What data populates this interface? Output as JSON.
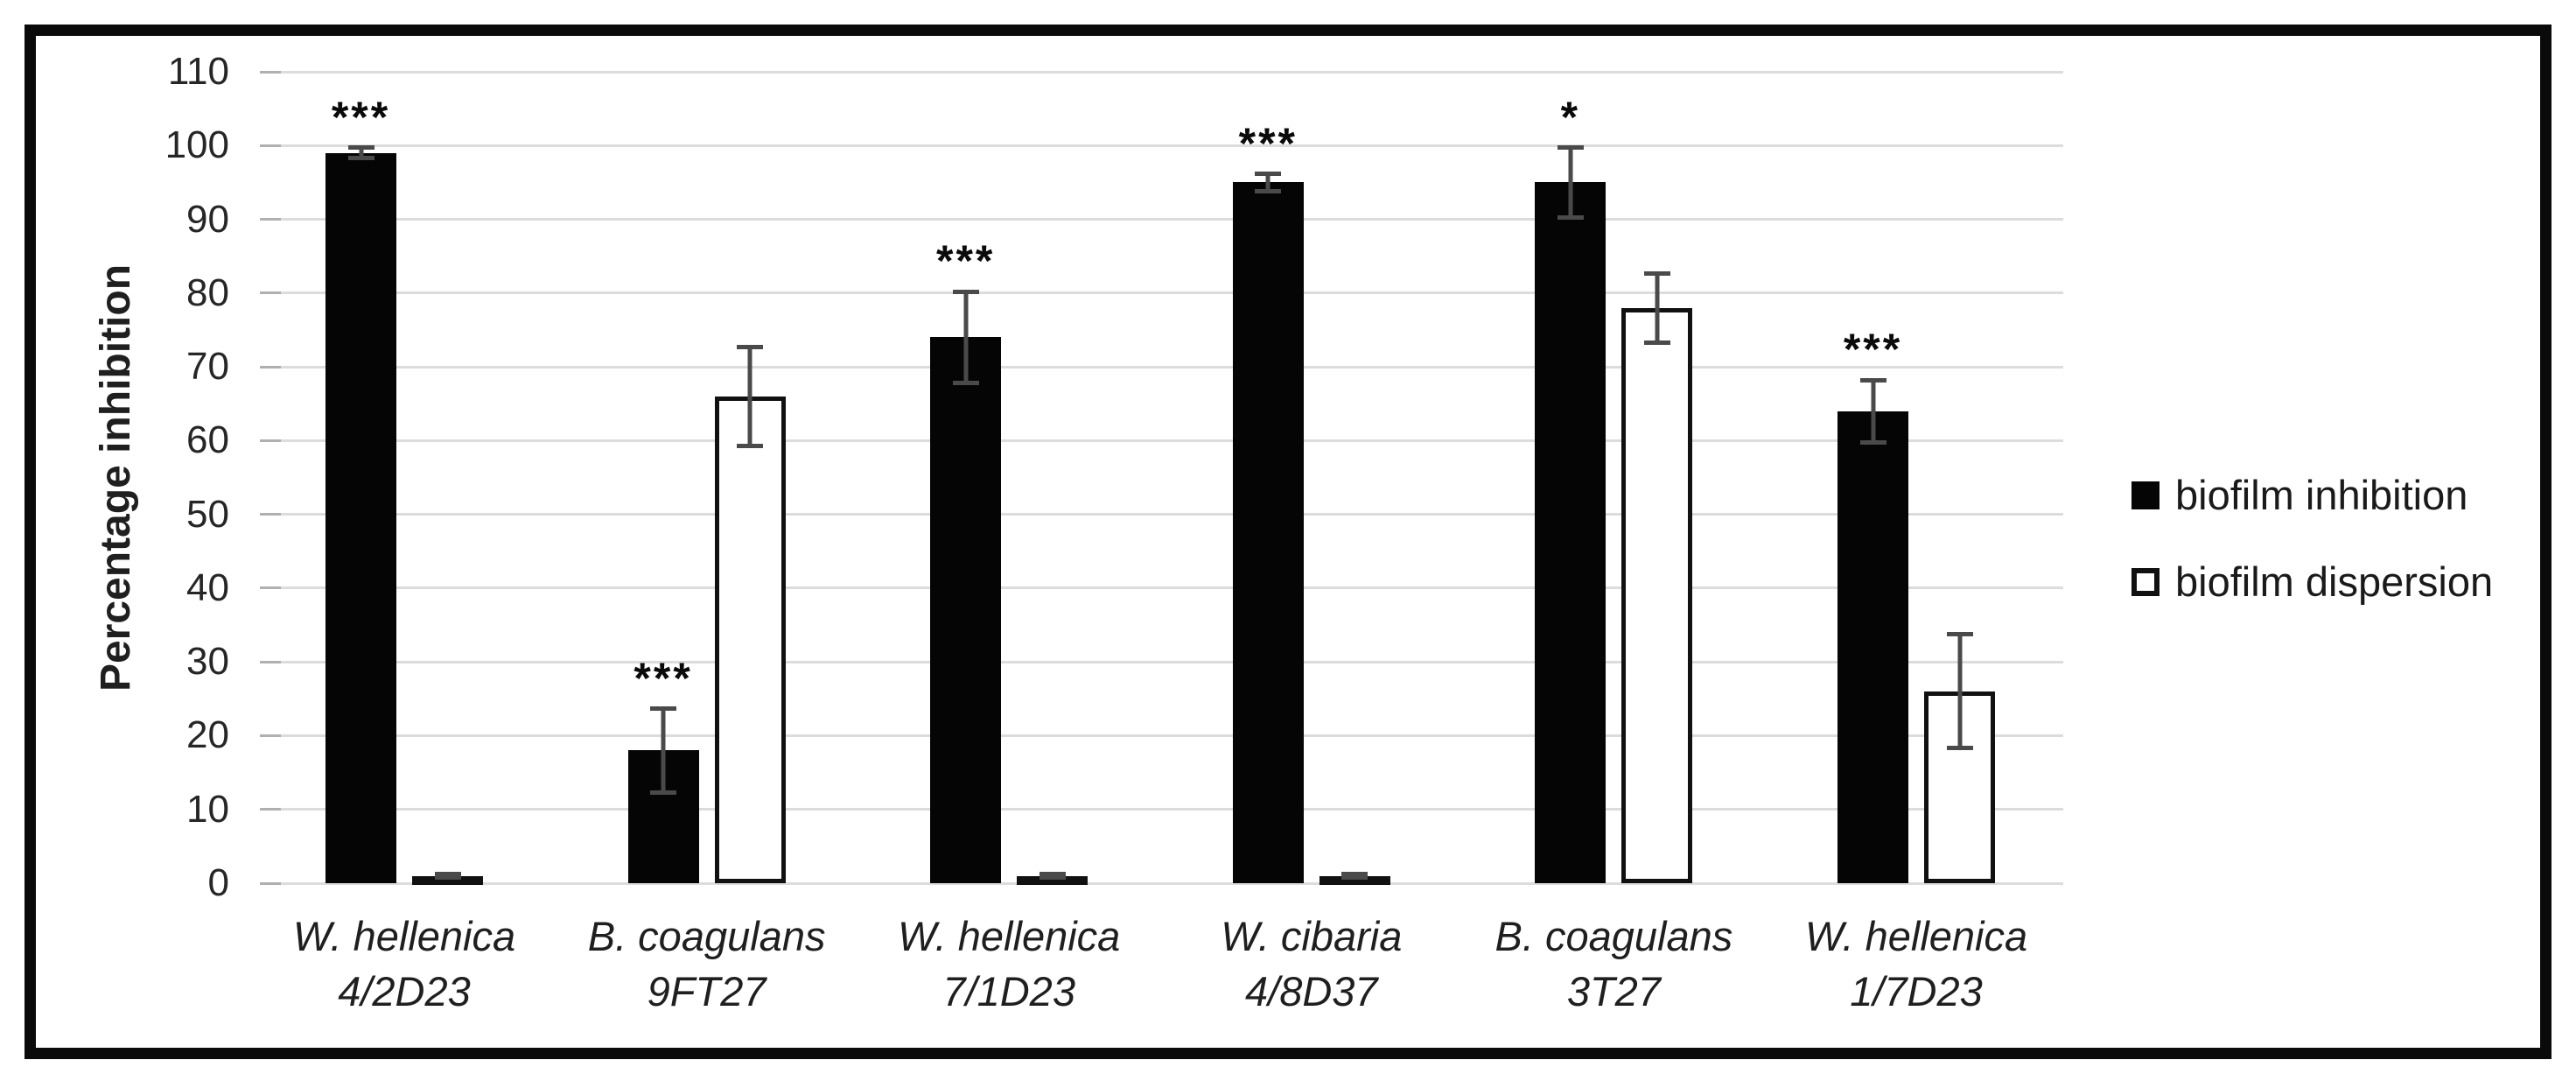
{
  "figure": {
    "kind": "scientific bar chart with error bars and significance markers",
    "frame_color": "#0a0a0a",
    "background": "#ffffff"
  },
  "chart_data": {
    "type": "bar",
    "title": "",
    "xlabel": "",
    "ylabel": "Percentage inhibition",
    "ylim": [
      0,
      110
    ],
    "ytick_step": 10,
    "grid": true,
    "gridline_color": "#dcdcdc",
    "legend_position": "right",
    "categories": [
      {
        "line1": "W. hellenica",
        "line2": "4/2D23"
      },
      {
        "line1": "B. coagulans",
        "line2": "9FT27"
      },
      {
        "line1": "W. hellenica",
        "line2": "7/1D23"
      },
      {
        "line1": "W. cibaria",
        "line2": "4/8D37"
      },
      {
        "line1": "B. coagulans",
        "line2": "3T27"
      },
      {
        "line1": "W. hellenica",
        "line2": "1/7D23"
      }
    ],
    "series": [
      {
        "name": "biofilm inhibition",
        "fill": "#000000",
        "values": [
          99,
          18,
          74,
          95,
          95,
          64
        ],
        "errors": [
          1,
          6,
          6.5,
          1.5,
          5,
          4.5
        ],
        "significance": [
          "***",
          "***",
          "***",
          "***",
          "*",
          "***"
        ]
      },
      {
        "name": "biofilm dispersion",
        "fill": "#ffffff",
        "values": [
          1,
          66,
          1,
          1,
          78,
          26
        ],
        "errors": [
          0.5,
          7,
          0.5,
          0.5,
          5,
          8
        ],
        "significance": [
          null,
          null,
          null,
          null,
          null,
          null
        ]
      }
    ]
  }
}
